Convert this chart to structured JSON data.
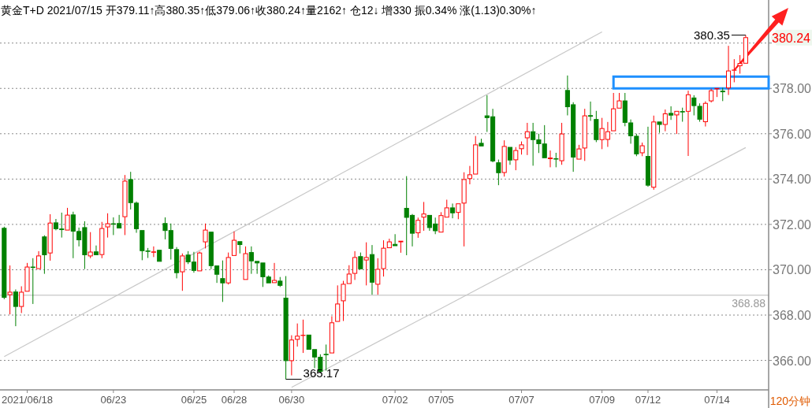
{
  "chart_data": {
    "type": "candlestick",
    "title": "黄金T+D 2021/07/15 开379.11↑高380.35↑低379.06↑收380.24↑量2162↑ 仓12↓ 增330 振0.34% 涨(1.13)0.30%↑",
    "categories": [
      null,
      null,
      null,
      null,
      "2021/06/18",
      null,
      null,
      null,
      null,
      null,
      null,
      null,
      null,
      null,
      null,
      null,
      null,
      null,
      null,
      "06/23",
      null,
      null,
      null,
      null,
      null,
      null,
      null,
      null,
      null,
      null,
      null,
      null,
      null,
      "06/25",
      null,
      null,
      null,
      null,
      null,
      null,
      "06/28",
      null,
      null,
      null,
      null,
      null,
      null,
      null,
      null,
      null,
      "06/30",
      null,
      null,
      null,
      null,
      null,
      null,
      null,
      null,
      null,
      null,
      null,
      null,
      null,
      null,
      null,
      null,
      null,
      "07/02",
      null,
      null,
      null,
      null,
      null,
      null,
      null,
      "07/05",
      null,
      null,
      null,
      null,
      null,
      null,
      null,
      null,
      null,
      null,
      null,
      null,
      null,
      "07/07",
      null,
      null,
      null,
      null,
      null,
      null,
      null,
      null,
      null,
      null,
      null,
      null,
      null,
      "07/09",
      null,
      null,
      null,
      null,
      null,
      null,
      null,
      "07/12",
      null,
      null,
      null,
      null,
      null,
      null,
      null,
      null,
      null,
      null,
      null,
      "07/14",
      null,
      null,
      null,
      null,
      null
    ],
    "ohlc": [
      [
        371.83,
        371.9,
        368.7,
        368.78
      ],
      [
        368.9,
        370.19,
        368.03,
        369.01
      ],
      [
        369.02,
        369.13,
        367.51,
        368.38
      ],
      [
        368.38,
        369.27,
        368.09,
        369.01
      ],
      [
        369.05,
        370.3,
        369.05,
        370.12
      ],
      [
        370.12,
        370.51,
        368.49,
        370.1
      ],
      [
        370.05,
        370.82,
        370.05,
        370.61
      ],
      [
        371.45,
        371.52,
        369.82,
        370.66
      ],
      [
        370.74,
        372.45,
        370.4,
        372.06
      ],
      [
        372.07,
        372.24,
        371.74,
        371.81
      ],
      [
        371.8,
        372.52,
        371.42,
        371.77
      ],
      [
        371.75,
        372.73,
        371.75,
        372.41
      ],
      [
        372.42,
        372.56,
        370.51,
        371.7
      ],
      [
        371.69,
        371.86,
        371.03,
        371.32
      ],
      [
        371.86,
        372.14,
        370.03,
        370.66
      ],
      [
        370.61,
        371.66,
        370.51,
        370.78
      ],
      [
        370.79,
        371.07,
        370.66,
        370.66
      ],
      [
        370.67,
        372.11,
        370.51,
        371.82
      ],
      [
        371.89,
        372.49,
        371.42,
        372.03
      ],
      [
        372.03,
        372.31,
        371.53,
        372.01
      ],
      [
        372.04,
        372.42,
        371.84,
        371.84
      ],
      [
        372.34,
        374.18,
        371.53,
        373.91
      ],
      [
        373.98,
        374.32,
        372.66,
        372.96
      ],
      [
        372.94,
        373.01,
        371.63,
        371.81
      ],
      [
        371.73,
        371.76,
        370.42,
        370.84
      ],
      [
        370.83,
        370.96,
        370.52,
        370.81
      ],
      [
        370.77,
        371.03,
        370.56,
        370.79
      ],
      [
        370.86,
        370.86,
        370.32,
        370.37
      ],
      [
        372.04,
        372.31,
        371.34,
        371.73
      ],
      [
        371.73,
        372.04,
        370.45,
        370.94
      ],
      [
        370.89,
        371.0,
        369.62,
        369.87
      ],
      [
        369.91,
        370.72,
        369.07,
        370.61
      ],
      [
        370.65,
        370.82,
        370.25,
        370.35
      ],
      [
        370.34,
        370.79,
        369.87,
        369.97
      ],
      [
        369.95,
        370.8,
        369.95,
        370.74
      ],
      [
        371.23,
        372.04,
        370.94,
        371.75
      ],
      [
        371.66,
        371.66,
        370.03,
        370.18
      ],
      [
        370.17,
        370.17,
        369.42,
        369.8
      ],
      [
        369.61,
        370.41,
        368.58,
        369.42
      ],
      [
        369.42,
        370.76,
        369.35,
        370.54
      ],
      [
        370.63,
        371.69,
        370.59,
        371.3
      ],
      [
        371.24,
        371.24,
        370.72,
        371.11
      ],
      [
        369.57,
        371.03,
        369.52,
        370.71
      ],
      [
        370.76,
        371.03,
        369.82,
        370.39
      ],
      [
        370.37,
        370.37,
        369.82,
        370.3
      ],
      [
        370.3,
        370.3,
        369.24,
        369.69
      ],
      [
        369.68,
        369.75,
        369.42,
        369.42
      ],
      [
        369.43,
        370.3,
        369.43,
        369.53
      ],
      [
        369.5,
        369.68,
        369.24,
        369.31
      ],
      [
        368.75,
        369.72,
        365.17,
        365.99
      ],
      [
        365.99,
        367.11,
        365.34,
        366.9
      ],
      [
        366.93,
        367.63,
        366.61,
        367.07
      ],
      [
        367.1,
        367.8,
        366.33,
        367.11
      ],
      [
        367.12,
        367.14,
        366.49,
        366.49
      ],
      [
        366.48,
        366.48,
        365.66,
        366.15
      ],
      [
        366.14,
        366.27,
        365.43,
        365.52
      ],
      [
        366.27,
        366.7,
        365.55,
        366.25
      ],
      [
        366.33,
        367.95,
        366.33,
        367.66
      ],
      [
        367.72,
        369.31,
        367.72,
        368.49
      ],
      [
        368.63,
        369.51,
        367.74,
        369.36
      ],
      [
        369.39,
        370.2,
        369.39,
        369.81
      ],
      [
        369.84,
        370.82,
        369.55,
        370.54
      ],
      [
        370.58,
        370.76,
        370.04,
        370.04
      ],
      [
        370.43,
        371.21,
        369.31,
        370.54
      ],
      [
        370.67,
        371.09,
        368.9,
        369.45
      ],
      [
        369.36,
        370.51,
        368.9,
        370.02
      ],
      [
        370.05,
        371.3,
        369.7,
        370.95
      ],
      [
        370.97,
        371.37,
        370.95,
        371.23
      ],
      [
        371.12,
        371.57,
        371.01,
        371.06
      ],
      [
        371.23,
        371.28,
        370.75,
        371.26
      ],
      [
        372.71,
        374.13,
        370.64,
        372.31
      ],
      [
        372.4,
        372.46,
        371.03,
        371.61
      ],
      [
        371.63,
        372.3,
        371.41,
        372.18
      ],
      [
        372.32,
        372.99,
        371.72,
        372.46
      ],
      [
        372.4,
        372.4,
        371.72,
        371.86
      ],
      [
        372.02,
        372.3,
        371.57,
        371.72
      ],
      [
        371.66,
        372.54,
        371.66,
        372.39
      ],
      [
        372.32,
        373.09,
        372.32,
        372.73
      ],
      [
        372.73,
        372.92,
        372.27,
        372.51
      ],
      [
        372.53,
        372.91,
        372.23,
        372.91
      ],
      [
        372.94,
        374.3,
        371.03,
        373.98
      ],
      [
        374.02,
        374.58,
        373.77,
        374.19
      ],
      [
        374.22,
        375.9,
        374.22,
        375.51
      ],
      [
        375.58,
        375.78,
        375.42,
        375.46
      ],
      [
        376.79,
        377.7,
        376.08,
        376.71
      ],
      [
        376.75,
        377.1,
        374.74,
        374.8
      ],
      [
        374.72,
        374.86,
        373.73,
        374.28
      ],
      [
        374.29,
        375.71,
        374.11,
        375.44
      ],
      [
        375.4,
        375.44,
        374.63,
        374.84
      ],
      [
        374.85,
        375.41,
        374.39,
        375.26
      ],
      [
        375.34,
        375.66,
        375.08,
        375.51
      ],
      [
        375.82,
        376.48,
        375.06,
        376.09
      ],
      [
        376.09,
        376.48,
        374.59,
        375.74
      ],
      [
        375.73,
        376.0,
        375.15,
        375.56
      ],
      [
        375.55,
        376.38,
        374.91,
        374.94
      ],
      [
        374.9,
        375.26,
        374.52,
        374.93
      ],
      [
        374.9,
        375.16,
        374.52,
        374.88
      ],
      [
        374.81,
        376.48,
        374.63,
        375.99
      ],
      [
        377.91,
        378.57,
        376.81,
        377.19
      ],
      [
        377.28,
        377.39,
        374.32,
        374.97
      ],
      [
        374.88,
        375.51,
        374.88,
        375.33
      ],
      [
        375.37,
        377.1,
        374.8,
        376.79
      ],
      [
        376.8,
        377.42,
        376.57,
        376.77
      ],
      [
        376.63,
        377.01,
        375.63,
        375.74
      ],
      [
        375.74,
        376.7,
        375.32,
        376.23
      ],
      [
        375.75,
        376.52,
        375.42,
        376.09
      ],
      [
        376.13,
        377.8,
        376.13,
        377.1
      ],
      [
        377.13,
        377.8,
        377.13,
        377.45
      ],
      [
        377.45,
        377.8,
        376.33,
        376.5
      ],
      [
        376.48,
        376.63,
        375.56,
        375.91
      ],
      [
        375.89,
        376.0,
        375.01,
        375.11
      ],
      [
        375.16,
        375.61,
        375.01,
        375.47
      ],
      [
        375.0,
        376.31,
        373.66,
        373.73
      ],
      [
        373.64,
        376.8,
        373.53,
        376.52
      ],
      [
        376.52,
        376.52,
        376.04,
        376.41
      ],
      [
        376.41,
        377.07,
        376.11,
        376.88
      ],
      [
        376.9,
        377.21,
        376.61,
        376.82
      ],
      [
        376.83,
        377.04,
        375.99,
        376.99
      ],
      [
        376.98,
        377.15,
        376.53,
        376.96
      ],
      [
        376.99,
        377.9,
        375.02,
        377.72
      ],
      [
        377.58,
        377.7,
        376.81,
        377.24
      ],
      [
        377.21,
        377.34,
        376.53,
        376.64
      ],
      [
        376.53,
        377.43,
        376.32,
        377.34
      ],
      [
        377.45,
        377.99,
        377.38,
        377.9
      ],
      [
        377.98,
        378.0,
        377.62,
        378.0
      ],
      [
        377.88,
        378.03,
        377.44,
        377.85
      ],
      [
        378.02,
        379.88,
        377.71,
        378.77
      ],
      [
        378.8,
        379.29,
        378.27,
        378.81
      ],
      [
        379.0,
        379.47,
        378.65,
        379.1
      ],
      [
        379.11,
        380.35,
        379.06,
        380.24
      ]
    ],
    "series": [
      {
        "type": "line",
        "color": "#c8c8c8",
        "values": [
          366.17,
          null,
          null,
          null,
          null,
          null,
          null,
          null,
          null,
          null,
          null,
          null,
          null,
          null,
          null,
          null,
          null,
          null,
          null,
          null,
          null,
          null,
          null,
          null,
          null,
          null,
          null,
          null,
          null,
          null,
          null,
          null,
          null,
          null,
          null,
          null,
          null,
          null,
          null,
          null,
          null,
          null,
          null,
          null,
          null,
          null,
          null,
          null,
          null,
          null,
          null,
          null,
          null,
          null,
          null,
          null,
          null,
          null,
          null,
          null,
          null,
          null,
          null,
          null,
          null,
          null,
          null,
          null,
          null,
          null,
          null,
          null,
          null,
          null,
          null,
          null,
          null,
          null,
          null,
          null,
          null,
          null,
          null,
          null,
          null,
          null,
          null,
          null,
          null,
          null,
          null,
          null,
          null,
          null,
          null,
          null,
          null,
          null,
          null,
          null,
          null,
          null,
          null,
          null,
          380.49,
          null,
          null,
          null,
          null,
          null,
          null,
          null,
          null,
          null,
          null,
          null,
          null,
          null,
          null,
          null,
          null,
          null,
          null,
          null,
          null,
          null,
          null,
          null,
          null,
          null
        ]
      },
      {
        "type": "line",
        "color": "#c8c8c8",
        "values": [
          null,
          null,
          null,
          null,
          null,
          null,
          null,
          null,
          null,
          null,
          null,
          null,
          null,
          null,
          null,
          null,
          null,
          null,
          null,
          null,
          null,
          null,
          null,
          null,
          null,
          null,
          null,
          null,
          null,
          null,
          null,
          null,
          null,
          null,
          null,
          null,
          null,
          null,
          null,
          null,
          null,
          null,
          null,
          null,
          null,
          null,
          null,
          null,
          null,
          null,
          364.81,
          null,
          null,
          null,
          null,
          null,
          null,
          null,
          null,
          null,
          null,
          null,
          null,
          null,
          null,
          null,
          null,
          null,
          null,
          null,
          null,
          null,
          null,
          null,
          null,
          null,
          null,
          null,
          null,
          null,
          null,
          null,
          null,
          null,
          null,
          null,
          null,
          null,
          null,
          null,
          null,
          null,
          null,
          null,
          null,
          null,
          null,
          null,
          null,
          null,
          null,
          null,
          null,
          null,
          null,
          null,
          null,
          null,
          null,
          null,
          null,
          null,
          null,
          null,
          null,
          null,
          null,
          null,
          null,
          null,
          null,
          null,
          null,
          null,
          null,
          null,
          null,
          null,
          null,
          375.39
        ]
      }
    ],
    "ylim": [
      364.7,
      381.9
    ],
    "yticks": [
      {
        "value": 366,
        "label": "366.00"
      },
      {
        "value": 368,
        "label": "368.00"
      },
      {
        "value": 370,
        "label": "370.00"
      },
      {
        "value": 372,
        "label": "372.00"
      },
      {
        "value": 374,
        "label": "374.00"
      },
      {
        "value": 376,
        "label": "376.00"
      },
      {
        "value": 378,
        "label": "378.00"
      },
      {
        "value": 380,
        "label": null
      }
    ],
    "grid": "y",
    "ref_lines": [
      {
        "axis": "y",
        "value": 368.88,
        "label": "368.88",
        "color": "#d0d0d0"
      }
    ],
    "annotations": [
      "380.35",
      "365.17",
      "380.24",
      "120分钟"
    ]
  }
}
